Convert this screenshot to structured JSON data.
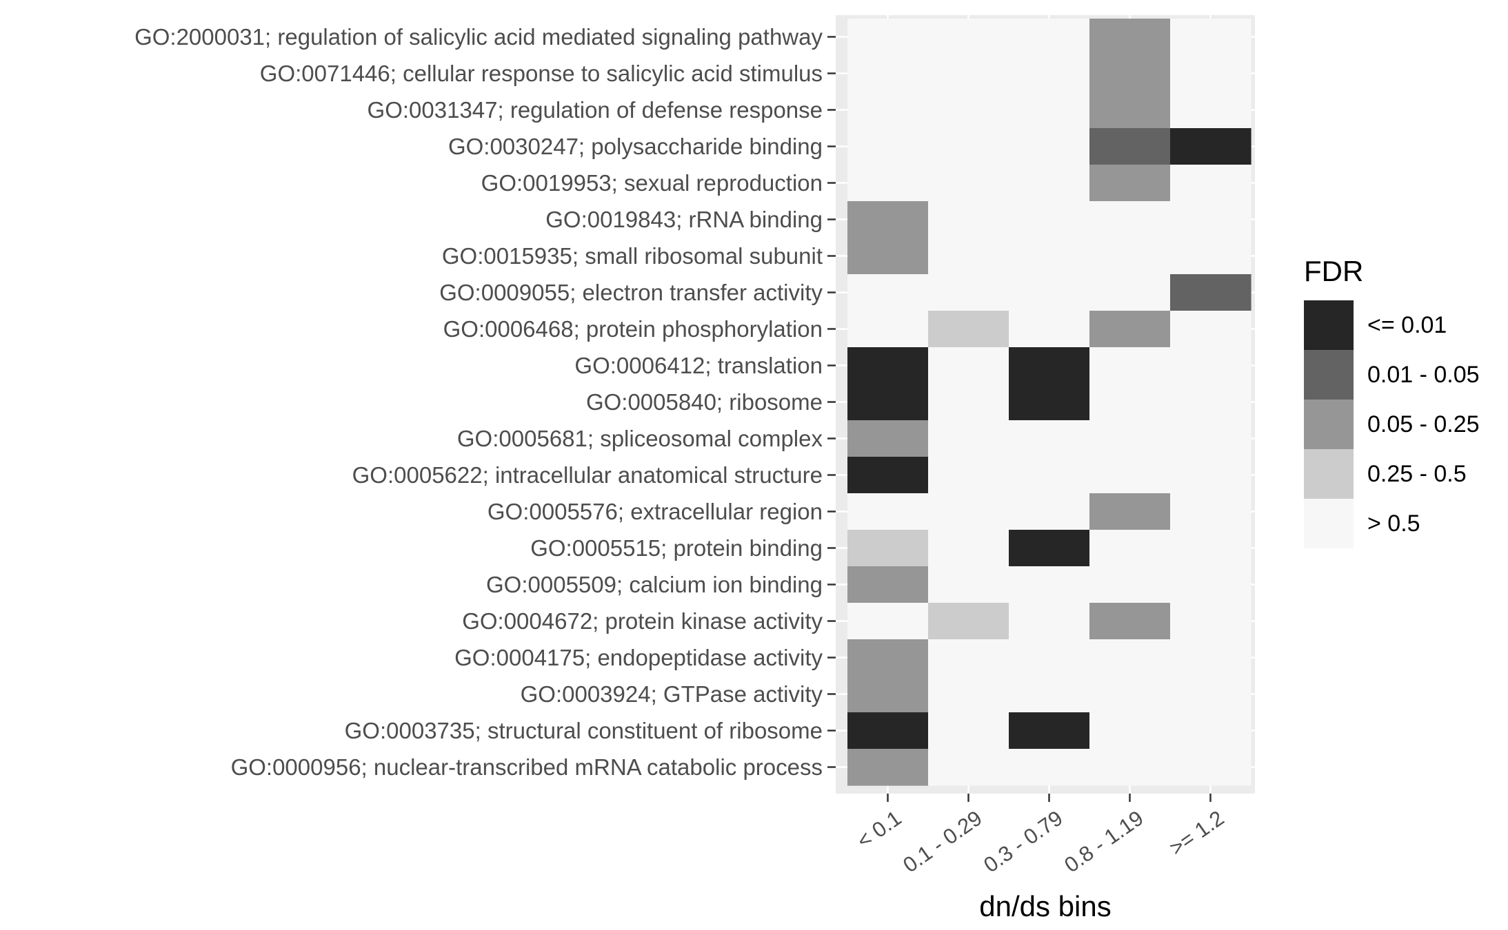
{
  "chart_data": {
    "type": "heatmap",
    "xlabel": "dn/ds bins",
    "ylabel": "",
    "x_categories": [
      "< 0.1",
      "0.1 - 0.29",
      "0.3 - 0.79",
      "0.8 - 1.19",
      ">= 1.2"
    ],
    "y_categories": [
      "GO:2000031; regulation of salicylic acid mediated signaling pathway",
      "GO:0071446; cellular response to salicylic acid stimulus",
      "GO:0031347; regulation of defense response",
      "GO:0030247; polysaccharide binding",
      "GO:0019953; sexual reproduction",
      "GO:0019843; rRNA binding",
      "GO:0015935; small ribosomal subunit",
      "GO:0009055; electron transfer activity",
      "GO:0006468; protein phosphorylation",
      "GO:0006412; translation",
      "GO:0005840; ribosome",
      "GO:0005681; spliceosomal complex",
      "GO:0005622; intracellular anatomical structure",
      "GO:0005576; extracellular region",
      "GO:0005515; protein binding",
      "GO:0005509; calcium ion binding",
      "GO:0004672; protein kinase activity",
      "GO:0004175; endopeptidase activity",
      "GO:0003924; GTPase activity",
      "GO:0003735; structural constituent of ribosome",
      "GO:0000956; nuclear-transcribed mRNA catabolic process"
    ],
    "legend": {
      "title": "FDR",
      "position": "right",
      "levels": [
        {
          "label": "<= 0.01",
          "color": "#262626"
        },
        {
          "label": "0.01 - 0.05",
          "color": "#636363"
        },
        {
          "label": "0.05 - 0.25",
          "color": "#969696"
        },
        {
          "label": "0.25 - 0.5",
          "color": "#cccccc"
        },
        {
          "label": "> 0.5",
          "color": "#f7f7f7"
        }
      ]
    },
    "cells": [
      [
        4,
        4,
        4,
        2,
        4
      ],
      [
        4,
        4,
        4,
        2,
        4
      ],
      [
        4,
        4,
        4,
        2,
        4
      ],
      [
        4,
        4,
        4,
        1,
        0
      ],
      [
        4,
        4,
        4,
        2,
        4
      ],
      [
        2,
        4,
        4,
        4,
        4
      ],
      [
        2,
        4,
        4,
        4,
        4
      ],
      [
        4,
        4,
        4,
        4,
        1
      ],
      [
        4,
        3,
        4,
        2,
        4
      ],
      [
        0,
        4,
        0,
        4,
        4
      ],
      [
        0,
        4,
        0,
        4,
        4
      ],
      [
        2,
        4,
        4,
        4,
        4
      ],
      [
        0,
        4,
        4,
        4,
        4
      ],
      [
        4,
        4,
        4,
        2,
        4
      ],
      [
        3,
        4,
        0,
        4,
        4
      ],
      [
        2,
        4,
        4,
        4,
        4
      ],
      [
        4,
        3,
        4,
        2,
        4
      ],
      [
        2,
        4,
        4,
        4,
        4
      ],
      [
        2,
        4,
        4,
        4,
        4
      ],
      [
        0,
        4,
        0,
        4,
        4
      ],
      [
        2,
        4,
        4,
        4,
        4
      ]
    ],
    "colors": {
      "panel_background": "#ebebeb",
      "grid": "#ffffff"
    }
  }
}
